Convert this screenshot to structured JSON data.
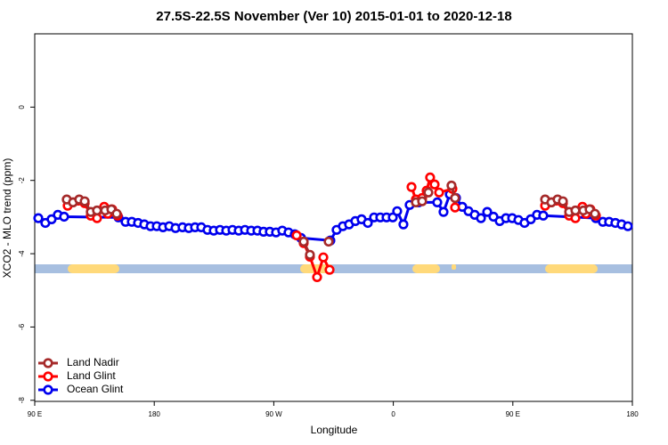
{
  "chart_data": {
    "type": "line",
    "title": "27.5S-22.5S November (Ver 10)   2015-01-01 to 2020-12-18",
    "xlabel": "Longitude",
    "ylabel": "XCO2 - MLO trend (ppm)",
    "xlim": [
      90,
      540
    ],
    "ylim": [
      -8.03,
      2
    ],
    "xticks": [
      {
        "value": 90,
        "label": "90 E"
      },
      180,
      {
        "value": 270,
        "label": "90 W"
      },
      {
        "value": 360,
        "label": "0"
      },
      {
        "value": 450,
        "label": "90 E"
      },
      {
        "value": 540,
        "label": "180"
      }
    ],
    "yticks": [
      0,
      -2,
      -4,
      -6,
      -8
    ],
    "legend": "lower left",
    "series": [
      {
        "name": "Land Nadir",
        "color": "#a52a2a",
        "x": [
          114.1,
          118.8,
          123.5,
          127.6,
          132.2,
          136.9,
          143.0,
          147.7,
          151.7,
          null,
          292.5,
          297.2,
          null,
          311.3,
          null,
          377.0,
          381.7,
          386.4,
          null,
          403.8,
          406.5,
          null,
          474.3,
          479.0,
          483.7,
          487.7,
          492.4,
          497.1,
          503.1,
          507.8,
          511.8
        ],
        "values": [
          -2.52,
          -2.6,
          -2.52,
          -2.57,
          -2.86,
          -2.82,
          -2.82,
          -2.79,
          -2.91,
          null,
          -3.67,
          -4.03,
          null,
          -3.67,
          null,
          -2.6,
          -2.57,
          -2.33,
          null,
          -2.14,
          -2.48,
          null,
          -2.52,
          -2.6,
          -2.52,
          -2.57,
          -2.86,
          -2.82,
          -2.82,
          -2.79,
          -2.91
        ]
      },
      {
        "name": "Land Glint",
        "color": "#ff0000",
        "x": [
          114.8,
          118.8,
          122.9,
          127.6,
          132.2,
          136.9,
          142.3,
          145.0,
          148.3,
          152.4,
          null,
          287.2,
          292.5,
          297.2,
          302.6,
          307.3,
          312.0,
          null,
          373.7,
          377.0,
          381.7,
          385.1,
          387.7,
          391.1,
          394.5,
          404.5,
          406.5,
          null,
          474.3,
          479.0,
          482.9,
          487.7,
          492.4,
          497.1,
          502.4,
          505.1,
          508.4,
          512.5
        ],
        "values": [
          -2.69,
          -2.6,
          -2.55,
          -2.62,
          -2.96,
          -3.03,
          -2.72,
          -2.91,
          -2.79,
          -2.96,
          null,
          -3.5,
          -3.71,
          -4.08,
          -4.64,
          -4.1,
          -4.44,
          null,
          -2.18,
          -2.52,
          -2.48,
          -2.28,
          -1.92,
          -2.11,
          -2.33,
          -2.23,
          -2.74,
          null,
          -2.69,
          -2.6,
          -2.55,
          -2.62,
          -2.96,
          -3.03,
          -2.72,
          -2.91,
          -2.79,
          -2.96
        ]
      },
      {
        "name": "Ocean Glint",
        "color": "#0000ee",
        "x": [
          92.7,
          98.0,
          102.7,
          107.4,
          112.1,
          153.0,
          158.4,
          163.1,
          167.8,
          172.5,
          177.2,
          181.9,
          186.6,
          191.3,
          196.0,
          201.3,
          206.0,
          210.7,
          215.4,
          220.1,
          224.8,
          229.5,
          234.2,
          238.9,
          243.6,
          248.3,
          253.0,
          257.7,
          262.3,
          267.0,
          271.7,
          276.4,
          281.1,
          285.8,
          290.5,
          312.6,
          317.3,
          322.0,
          326.7,
          331.4,
          336.1,
          340.8,
          345.5,
          350.2,
          354.9,
          359.6,
          362.9,
          367.6,
          372.3,
          379.0,
          393.1,
          397.8,
          402.5,
          407.2,
          411.9,
          416.6,
          421.3,
          426.0,
          430.7,
          435.4,
          440.1,
          444.8,
          449.5,
          454.2,
          458.8,
          463.5,
          468.2,
          472.9,
          512.5,
          517.8,
          522.5,
          527.2,
          531.9,
          536.6
        ],
        "values": [
          -3.03,
          -3.16,
          -3.06,
          -2.94,
          -2.99,
          -3.01,
          -3.13,
          -3.13,
          -3.16,
          -3.2,
          -3.25,
          -3.25,
          -3.28,
          -3.25,
          -3.3,
          -3.28,
          -3.3,
          -3.28,
          -3.28,
          -3.35,
          -3.37,
          -3.35,
          -3.37,
          -3.35,
          -3.37,
          -3.35,
          -3.37,
          -3.37,
          -3.4,
          -3.4,
          -3.42,
          -3.37,
          -3.42,
          -3.47,
          -3.57,
          -3.64,
          -3.35,
          -3.25,
          -3.2,
          -3.11,
          -3.06,
          -3.16,
          -3.01,
          -3.01,
          -3.01,
          -3.01,
          -2.84,
          -3.2,
          -2.67,
          -2.6,
          -2.6,
          -2.86,
          -2.38,
          -2.48,
          -2.72,
          -2.84,
          -2.94,
          -3.03,
          -2.86,
          -2.99,
          -3.11,
          -3.03,
          -3.03,
          -3.08,
          -3.16,
          -3.06,
          -2.94,
          -2.96,
          -3.03,
          -3.13,
          -3.13,
          -3.16,
          -3.2,
          -3.25
        ]
      }
    ]
  }
}
